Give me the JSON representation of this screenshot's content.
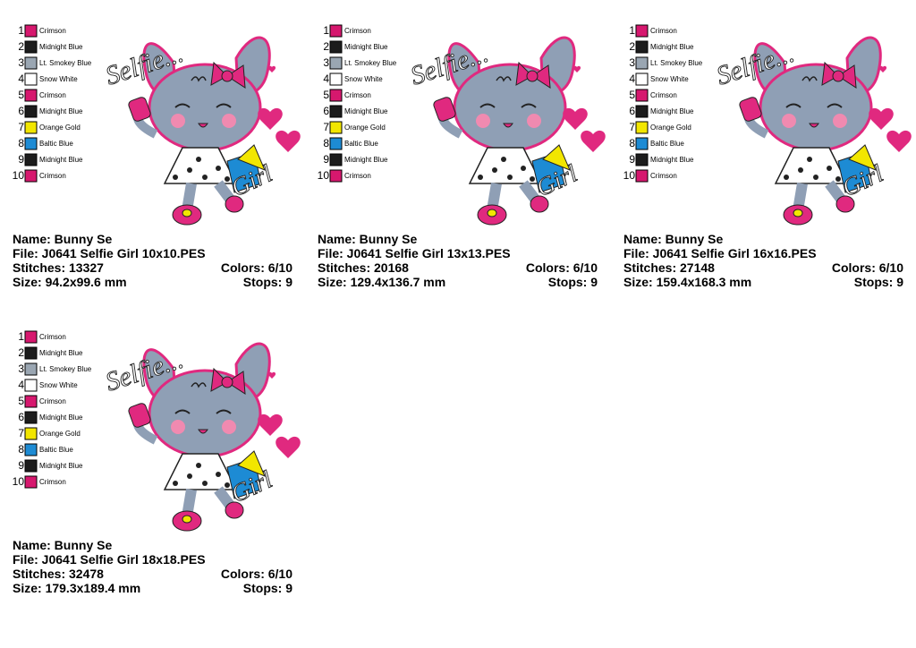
{
  "designs": [
    {
      "colors": [
        {
          "index": 1,
          "name": "Crimson",
          "swatch": "#d6186e"
        },
        {
          "index": 2,
          "name": "Midnight Blue",
          "swatch": "#1c1c1c"
        },
        {
          "index": 3,
          "name": "Lt. Smokey Blue",
          "swatch": "#9aa6b2"
        },
        {
          "index": 4,
          "name": "Snow White",
          "swatch": "#ffffff"
        },
        {
          "index": 5,
          "name": "Crimson",
          "swatch": "#d6186e"
        },
        {
          "index": 6,
          "name": "Midnight Blue",
          "swatch": "#1c1c1c"
        },
        {
          "index": 7,
          "name": "Orange Gold",
          "swatch": "#f2e600"
        },
        {
          "index": 8,
          "name": "Baltic Blue",
          "swatch": "#1d8bd4"
        },
        {
          "index": 9,
          "name": "Midnight Blue",
          "swatch": "#1c1c1c"
        },
        {
          "index": 10,
          "name": "Crimson",
          "swatch": "#d6186e"
        }
      ],
      "artwork": {
        "top": "Selfie...",
        "bottom": "Girl"
      },
      "name": "Name: Bunny Se",
      "file": "File: J0641 Selfie Girl 10x10.PES",
      "stitches": "Stitches: 13327",
      "colors_used": "Colors: 6/10",
      "size": "Size: 94.2x99.6 mm",
      "stops": "Stops: 9"
    },
    {
      "colors": [
        {
          "index": 1,
          "name": "Crimson",
          "swatch": "#d6186e"
        },
        {
          "index": 2,
          "name": "Midnight Blue",
          "swatch": "#1c1c1c"
        },
        {
          "index": 3,
          "name": "Lt. Smokey Blue",
          "swatch": "#9aa6b2"
        },
        {
          "index": 4,
          "name": "Snow White",
          "swatch": "#ffffff"
        },
        {
          "index": 5,
          "name": "Crimson",
          "swatch": "#d6186e"
        },
        {
          "index": 6,
          "name": "Midnight Blue",
          "swatch": "#1c1c1c"
        },
        {
          "index": 7,
          "name": "Orange Gold",
          "swatch": "#f2e600"
        },
        {
          "index": 8,
          "name": "Baltic Blue",
          "swatch": "#1d8bd4"
        },
        {
          "index": 9,
          "name": "Midnight Blue",
          "swatch": "#1c1c1c"
        },
        {
          "index": 10,
          "name": "Crimson",
          "swatch": "#d6186e"
        }
      ],
      "artwork": {
        "top": "Selfie...",
        "bottom": "Girl"
      },
      "name": "Name: Bunny Se",
      "file": "File: J0641 Selfie Girl 13x13.PES",
      "stitches": "Stitches: 20168",
      "colors_used": "Colors: 6/10",
      "size": "Size: 129.4x136.7 mm",
      "stops": "Stops: 9"
    },
    {
      "colors": [
        {
          "index": 1,
          "name": "Crimson",
          "swatch": "#d6186e"
        },
        {
          "index": 2,
          "name": "Midnight Blue",
          "swatch": "#1c1c1c"
        },
        {
          "index": 3,
          "name": "Lt. Smokey Blue",
          "swatch": "#9aa6b2"
        },
        {
          "index": 4,
          "name": "Snow White",
          "swatch": "#ffffff"
        },
        {
          "index": 5,
          "name": "Crimson",
          "swatch": "#d6186e"
        },
        {
          "index": 6,
          "name": "Midnight Blue",
          "swatch": "#1c1c1c"
        },
        {
          "index": 7,
          "name": "Orange Gold",
          "swatch": "#f2e600"
        },
        {
          "index": 8,
          "name": "Baltic Blue",
          "swatch": "#1d8bd4"
        },
        {
          "index": 9,
          "name": "Midnight Blue",
          "swatch": "#1c1c1c"
        },
        {
          "index": 10,
          "name": "Crimson",
          "swatch": "#d6186e"
        }
      ],
      "artwork": {
        "top": "Selfie...",
        "bottom": "Girl"
      },
      "name": "Name: Bunny Se",
      "file": "File: J0641 Selfie Girl 16x16.PES",
      "stitches": "Stitches: 27148",
      "colors_used": "Colors: 6/10",
      "size": "Size: 159.4x168.3 mm",
      "stops": "Stops: 9"
    },
    {
      "colors": [
        {
          "index": 1,
          "name": "Crimson",
          "swatch": "#d6186e"
        },
        {
          "index": 2,
          "name": "Midnight Blue",
          "swatch": "#1c1c1c"
        },
        {
          "index": 3,
          "name": "Lt. Smokey Blue",
          "swatch": "#9aa6b2"
        },
        {
          "index": 4,
          "name": "Snow White",
          "swatch": "#ffffff"
        },
        {
          "index": 5,
          "name": "Crimson",
          "swatch": "#d6186e"
        },
        {
          "index": 6,
          "name": "Midnight Blue",
          "swatch": "#1c1c1c"
        },
        {
          "index": 7,
          "name": "Orange Gold",
          "swatch": "#f2e600"
        },
        {
          "index": 8,
          "name": "Baltic Blue",
          "swatch": "#1d8bd4"
        },
        {
          "index": 9,
          "name": "Midnight Blue",
          "swatch": "#1c1c1c"
        },
        {
          "index": 10,
          "name": "Crimson",
          "swatch": "#d6186e"
        }
      ],
      "artwork": {
        "top": "Selfie...",
        "bottom": "Girl"
      },
      "name": "Name: Bunny Se",
      "file": "File: J0641 Selfie Girl 18x18.PES",
      "stitches": "Stitches: 32478",
      "colors_used": "Colors: 6/10",
      "size": "Size: 179.3x189.4 mm",
      "stops": "Stops: 9"
    }
  ]
}
